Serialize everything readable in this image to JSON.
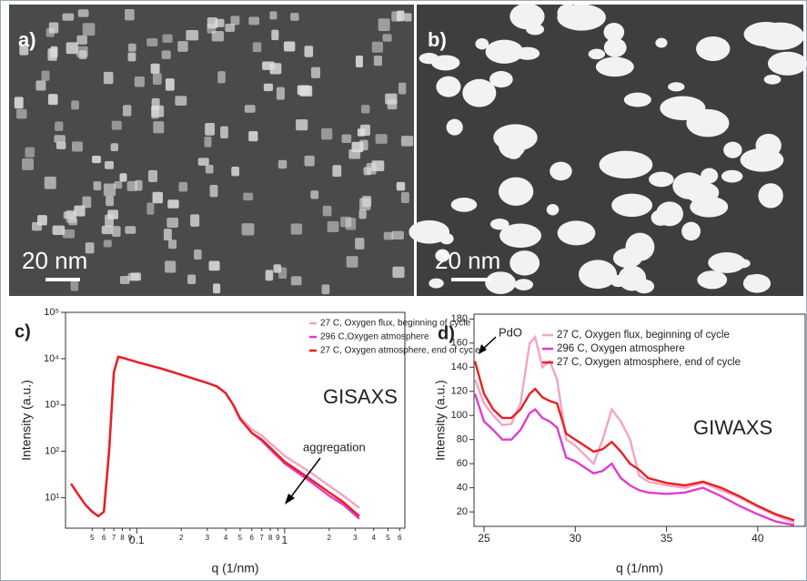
{
  "images": [
    {
      "label": "a)",
      "scale_bar": "20 nm"
    },
    {
      "label": "b)",
      "scale_bar": "20 nm"
    }
  ],
  "chart_data": [
    {
      "type": "line",
      "panel": "c)",
      "xscale": "log",
      "yscale": "log",
      "xlabel": "q (1/nm)",
      "ylabel": "Intensity (a.u.)",
      "annotations": [
        "GISAXS",
        "aggregation"
      ],
      "legend": "upper right",
      "xlim": [
        0.033,
        6.5
      ],
      "ylim": [
        2.2,
        100000
      ],
      "xticks": [
        {
          "value": 0.05,
          "label": "5"
        },
        {
          "value": 0.06,
          "label": "6"
        },
        {
          "value": 0.07,
          "label": "7"
        },
        {
          "value": 0.08,
          "label": "8"
        },
        {
          "value": 0.09,
          "label": "9"
        },
        0.1,
        {
          "value": 0.2,
          "label": "2"
        },
        {
          "value": 0.3,
          "label": "3"
        },
        {
          "value": 0.4,
          "label": "4"
        },
        {
          "value": 0.5,
          "label": "5"
        },
        {
          "value": 0.6,
          "label": "6"
        },
        {
          "value": 0.7,
          "label": "7"
        },
        {
          "value": 0.8,
          "label": "8"
        },
        {
          "value": 0.9,
          "label": "9"
        },
        1,
        {
          "value": 2,
          "label": "2"
        },
        {
          "value": 3,
          "label": "3"
        },
        {
          "value": 4,
          "label": "4"
        },
        {
          "value": 5,
          "label": "5"
        },
        {
          "value": 6,
          "label": "6"
        }
      ],
      "yticks": [
        {
          "value": 10,
          "label": "10¹"
        },
        {
          "value": 100,
          "label": "10²"
        },
        {
          "value": 1000,
          "label": "10³"
        },
        {
          "value": 10000,
          "label": "10⁴"
        },
        {
          "value": 100000,
          "label": "10⁵"
        }
      ],
      "x": [
        0.036,
        0.04,
        0.045,
        0.05,
        0.055,
        0.06,
        0.065,
        0.07,
        0.075,
        0.08,
        0.1,
        0.15,
        0.2,
        0.3,
        0.35,
        0.4,
        0.45,
        0.5,
        0.6,
        0.7,
        0.8,
        1,
        1.5,
        2,
        2.5,
        3.2
      ],
      "series": [
        {
          "name": "27 C, Oxygen flux, beginning of cycle",
          "color": "#f5a3c4",
          "values": [
            20,
            12,
            7,
            5,
            4,
            5,
            100,
            5000,
            11000,
            10500,
            8500,
            6000,
            4500,
            3000,
            2500,
            1800,
            1000,
            550,
            300,
            220,
            150,
            80,
            35,
            18,
            11,
            6
          ]
        },
        {
          "name": "296 C,Oxygen atmosphere",
          "color": "#e03cd0",
          "values": [
            20,
            12,
            7,
            5,
            4,
            5,
            100,
            5000,
            11000,
            10500,
            8500,
            6000,
            4500,
            3000,
            2500,
            1800,
            1000,
            500,
            250,
            170,
            110,
            55,
            22,
            11,
            7,
            3.5
          ]
        },
        {
          "name": "27 C, Oxygen atmosphere, end of cycle",
          "color": "#e82020",
          "values": [
            20,
            12,
            7,
            5,
            4,
            5,
            100,
            5000,
            11000,
            10500,
            8500,
            6000,
            4500,
            3000,
            2500,
            1800,
            1000,
            500,
            250,
            180,
            120,
            60,
            25,
            13,
            8,
            4
          ]
        }
      ]
    },
    {
      "type": "line",
      "panel": "d)",
      "xlabel": "q (1/nm)",
      "ylabel": "Intensity (a.u.)",
      "annotations": [
        "GIWAXS",
        "PdO"
      ],
      "legend": "upper right",
      "xlim": [
        24.45,
        42.6
      ],
      "ylim": [
        8,
        184
      ],
      "xticks": [
        25,
        30,
        35,
        40
      ],
      "yticks": [
        20,
        40,
        60,
        80,
        100,
        120,
        140,
        160,
        180
      ],
      "x": [
        24.5,
        25,
        25.5,
        26,
        26.5,
        27,
        27.5,
        27.8,
        28.2,
        28.6,
        29,
        29.5,
        30,
        31,
        31.5,
        32,
        32.5,
        33,
        33.5,
        34,
        35,
        36,
        37,
        38,
        39,
        40,
        41,
        42
      ],
      "series": [
        {
          "name": "27 C, Oxygen flux, beginning of cycle",
          "color": "#f5a3c4",
          "values": [
            130,
            110,
            100,
            92,
            93,
            110,
            160,
            165,
            140,
            145,
            130,
            80,
            75,
            60,
            80,
            105,
            95,
            80,
            50,
            45,
            42,
            40,
            44,
            38,
            32,
            24,
            17,
            11
          ]
        },
        {
          "name": "296 C, Oxygen atmosphere",
          "color": "#e03cd0",
          "values": [
            118,
            95,
            88,
            80,
            80,
            88,
            102,
            105,
            98,
            95,
            90,
            65,
            62,
            52,
            54,
            60,
            48,
            42,
            38,
            36,
            35,
            36,
            40,
            33,
            25,
            18,
            12,
            9
          ]
        },
        {
          "name": "27 C, Oxygen atmosphere, end of cycle",
          "color": "#e82020",
          "values": [
            145,
            118,
            105,
            98,
            98,
            105,
            118,
            122,
            115,
            112,
            110,
            85,
            80,
            70,
            72,
            78,
            70,
            60,
            55,
            48,
            44,
            42,
            45,
            40,
            33,
            25,
            18,
            13
          ]
        }
      ]
    }
  ]
}
